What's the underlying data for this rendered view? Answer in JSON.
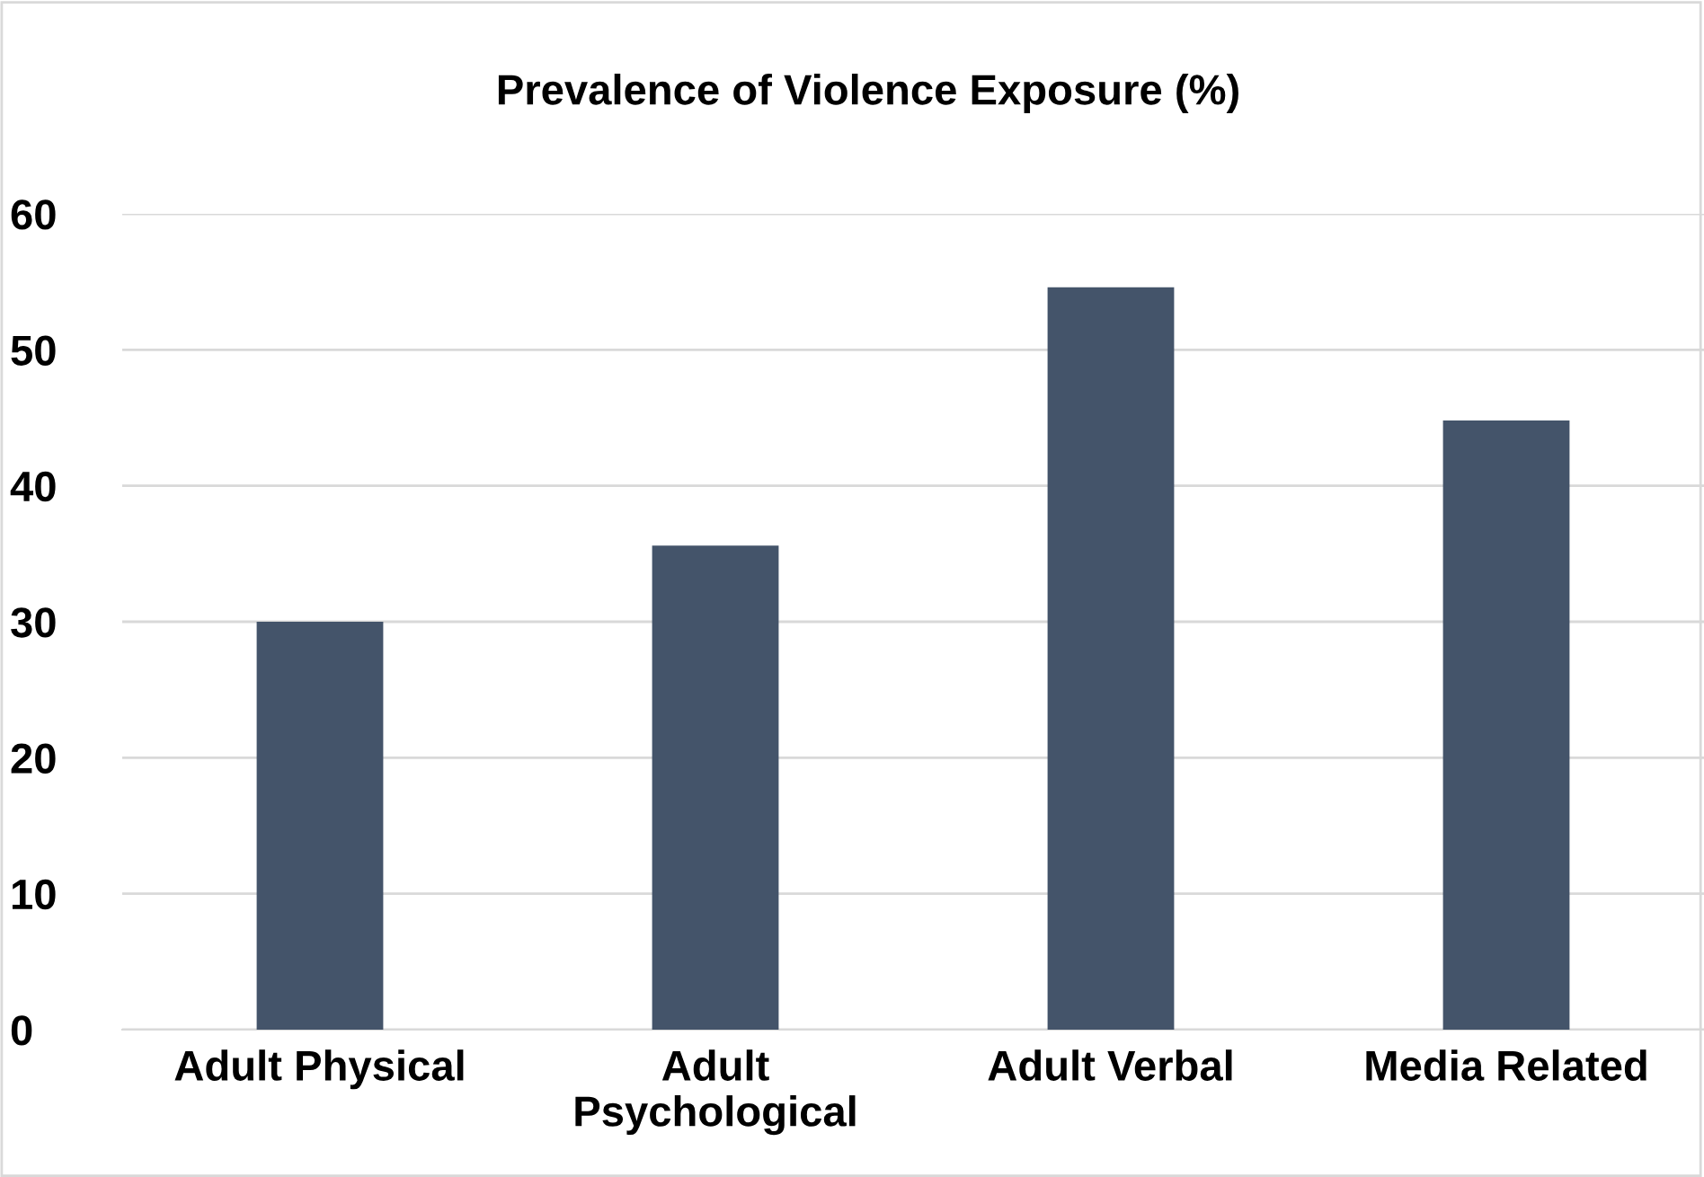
{
  "chart_data": {
    "type": "bar",
    "title": "Prevalence of Violence Exposure (%)",
    "categories": [
      "Adult Physical",
      "Adult\nPsychological",
      "Adult Verbal",
      "Media Related"
    ],
    "values": [
      30,
      35.6,
      54.6,
      44.8
    ],
    "color": "#44546a",
    "ylim": [
      0,
      60
    ],
    "yticks": [
      0,
      10,
      20,
      30,
      40,
      50,
      60
    ],
    "grid": "y"
  }
}
